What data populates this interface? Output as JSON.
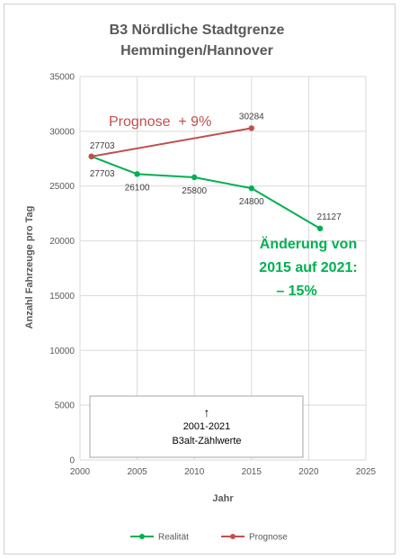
{
  "chart_data": {
    "type": "line",
    "title_lines": [
      "B3 Nördliche Stadtgrenze",
      "Hemmingen/Hannover"
    ],
    "xlabel": "Jahr",
    "ylabel": "Anzahl Fahrzeuge pro Tag",
    "xlim": [
      2000,
      2025
    ],
    "ylim": [
      0,
      35000
    ],
    "x_ticks": [
      2000,
      2005,
      2010,
      2015,
      2020,
      2025
    ],
    "y_ticks": [
      0,
      5000,
      10000,
      15000,
      20000,
      25000,
      30000,
      35000
    ],
    "grid": true,
    "legend_position": "bottom",
    "series": [
      {
        "name": "Realität",
        "color": "#00b050",
        "points": [
          {
            "x": 2001,
            "y": 27703,
            "label": "27703"
          },
          {
            "x": 2005,
            "y": 26100,
            "label": "26100"
          },
          {
            "x": 2010,
            "y": 25800,
            "label": "25800"
          },
          {
            "x": 2015,
            "y": 24800,
            "label": "24800"
          },
          {
            "x": 2021,
            "y": 21127,
            "label": "21127"
          }
        ]
      },
      {
        "name": "Prognose",
        "color": "#c0504d",
        "points": [
          {
            "x": 2001,
            "y": 27703,
            "label": "27703"
          },
          {
            "x": 2015,
            "y": 30284,
            "label": "30284"
          }
        ]
      }
    ],
    "annotations": {
      "prognose": "Prognose  + 9%",
      "change_lines": [
        "Änderung von",
        "2015 auf 2021:",
        "– 15%"
      ],
      "box_arrow": "↑",
      "box_lines": [
        "2001-2021",
        "B3alt-Zählwerte"
      ]
    }
  }
}
